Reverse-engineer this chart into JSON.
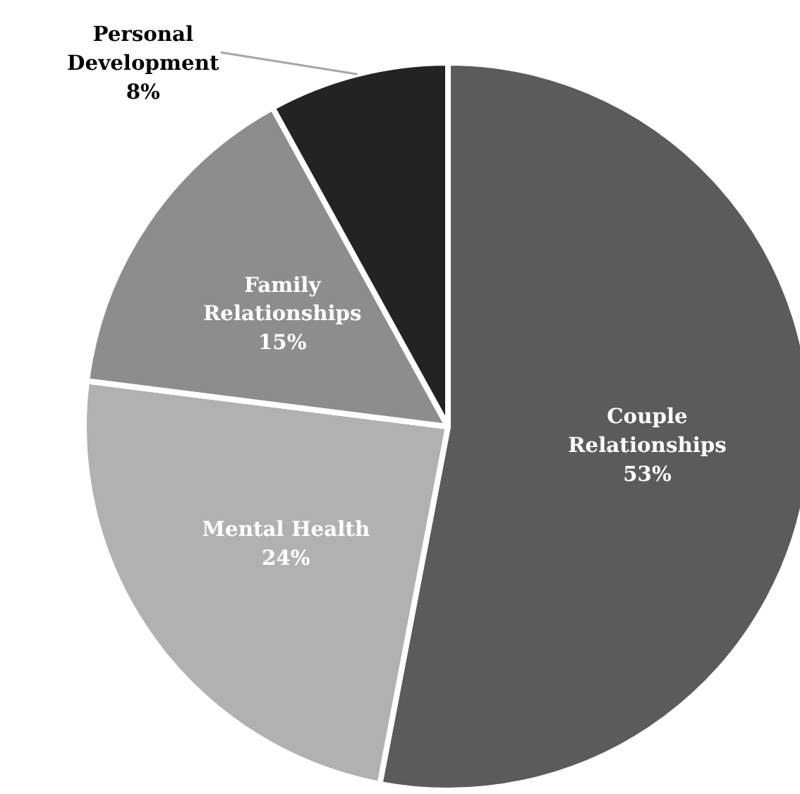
{
  "chart_data": {
    "type": "pie",
    "categories": [
      "Couple Relationships",
      "Mental Health",
      "Family Relationships",
      "Personal Development"
    ],
    "values": [
      53,
      24,
      15,
      8
    ],
    "colors": [
      "#5b5b5b",
      "#b1b1b1",
      "#8d8d8d",
      "#232323"
    ],
    "value_labels": [
      "53%",
      "24%",
      "15%",
      "8%"
    ]
  }
}
